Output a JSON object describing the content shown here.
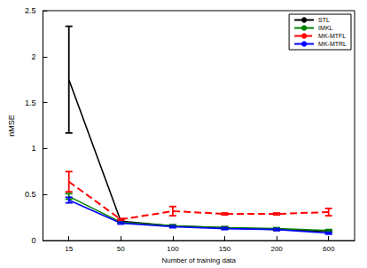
{
  "chart_data": {
    "type": "line",
    "x_label": "Number of training data",
    "y_label": "nMSE",
    "categories": [
      "15",
      "50",
      "100",
      "150",
      "200",
      "600"
    ],
    "series": [
      {
        "name": "STL",
        "color": "#000000",
        "line_style": "solid",
        "values": [
          1.75,
          0.21,
          0.16,
          0.14,
          0.12,
          0.1
        ],
        "errors": [
          0.58,
          0.01,
          0.01,
          0.01,
          0.01,
          0.01
        ]
      },
      {
        "name": "IMKL",
        "color": "#008000",
        "line_style": "solid",
        "values": [
          0.48,
          0.2,
          0.16,
          0.14,
          0.13,
          0.11
        ],
        "errors": [
          0.03,
          0.01,
          0.01,
          0.01,
          0.01,
          0.01
        ]
      },
      {
        "name": "MK-MTFL",
        "color": "#ff0000",
        "line_style": "dashed",
        "values": [
          0.64,
          0.23,
          0.32,
          0.29,
          0.29,
          0.31
        ],
        "errors": [
          0.11,
          0.01,
          0.05,
          0.01,
          0.01,
          0.04
        ]
      },
      {
        "name": "MK-MTRL",
        "color": "#0000ff",
        "line_style": "solid",
        "values": [
          0.44,
          0.19,
          0.15,
          0.13,
          0.12,
          0.08
        ],
        "errors": [
          0.03,
          0.01,
          0.01,
          0.01,
          0.01,
          0.01
        ]
      }
    ],
    "ylim": [
      0,
      2.5
    ],
    "yticks": [
      0,
      0.5,
      1,
      1.5,
      2,
      2.5
    ],
    "grid": false,
    "legend": "upper right"
  }
}
